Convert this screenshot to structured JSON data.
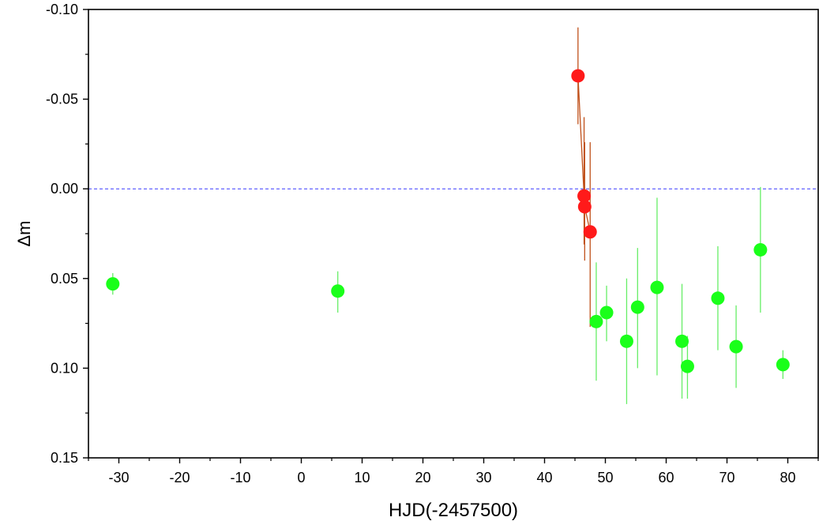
{
  "chart_data": {
    "type": "scatter",
    "xlabel": "HJD(-2457500)",
    "ylabel": "Δm",
    "xlim": [
      -35,
      85
    ],
    "ylim": [
      0.15,
      -0.1
    ],
    "y_inverted": true,
    "xticks": [
      -30,
      -20,
      -10,
      0,
      10,
      20,
      30,
      40,
      50,
      60,
      70,
      80
    ],
    "xtick_labels": [
      "-30",
      "-20",
      "-10",
      "0",
      "10",
      "20",
      "30",
      "40",
      "50",
      "60",
      "70",
      "80"
    ],
    "yticks": [
      -0.1,
      -0.05,
      0.0,
      0.05,
      0.1,
      0.15
    ],
    "ytick_labels": [
      "-0.10",
      "-0.05",
      "0.00",
      "0.05",
      "0.10",
      "0.15"
    ],
    "reference_line": {
      "y": 0.0,
      "style": "dashed",
      "color": "#3a3aff"
    },
    "grid": false,
    "series": [
      {
        "color": "#ff1a1a",
        "error_color": "#c0501a",
        "connected": true,
        "points": [
          {
            "x": 45.5,
            "y": -0.063,
            "err_lo": -0.09,
            "err_hi": -0.036
          },
          {
            "x": 46.5,
            "y": 0.004,
            "err_lo": -0.04,
            "err_hi": 0.031
          },
          {
            "x": 46.6,
            "y": 0.01,
            "err_lo": -0.026,
            "err_hi": 0.04
          },
          {
            "x": 47.5,
            "y": 0.024,
            "err_lo": -0.026,
            "err_hi": 0.077
          }
        ]
      },
      {
        "color": "#1aff1a",
        "error_color": "#66ee66",
        "connected": false,
        "points": [
          {
            "x": -31.0,
            "y": 0.053,
            "err_lo": 0.047,
            "err_hi": 0.059
          },
          {
            "x": 6.0,
            "y": 0.057,
            "err_lo": 0.046,
            "err_hi": 0.069
          },
          {
            "x": 48.5,
            "y": 0.074,
            "err_lo": 0.041,
            "err_hi": 0.107
          },
          {
            "x": 50.2,
            "y": 0.069,
            "err_lo": 0.054,
            "err_hi": 0.085
          },
          {
            "x": 53.5,
            "y": 0.085,
            "err_lo": 0.05,
            "err_hi": 0.12
          },
          {
            "x": 55.3,
            "y": 0.066,
            "err_lo": 0.033,
            "err_hi": 0.1
          },
          {
            "x": 58.5,
            "y": 0.055,
            "err_lo": 0.005,
            "err_hi": 0.104
          },
          {
            "x": 62.6,
            "y": 0.085,
            "err_lo": 0.053,
            "err_hi": 0.117
          },
          {
            "x": 63.5,
            "y": 0.099,
            "err_lo": 0.082,
            "err_hi": 0.117
          },
          {
            "x": 68.5,
            "y": 0.061,
            "err_lo": 0.032,
            "err_hi": 0.09
          },
          {
            "x": 71.5,
            "y": 0.088,
            "err_lo": 0.065,
            "err_hi": 0.111
          },
          {
            "x": 75.5,
            "y": 0.034,
            "err_lo": -0.001,
            "err_hi": 0.069
          },
          {
            "x": 79.2,
            "y": 0.098,
            "err_lo": 0.09,
            "err_hi": 0.106
          }
        ]
      }
    ]
  }
}
